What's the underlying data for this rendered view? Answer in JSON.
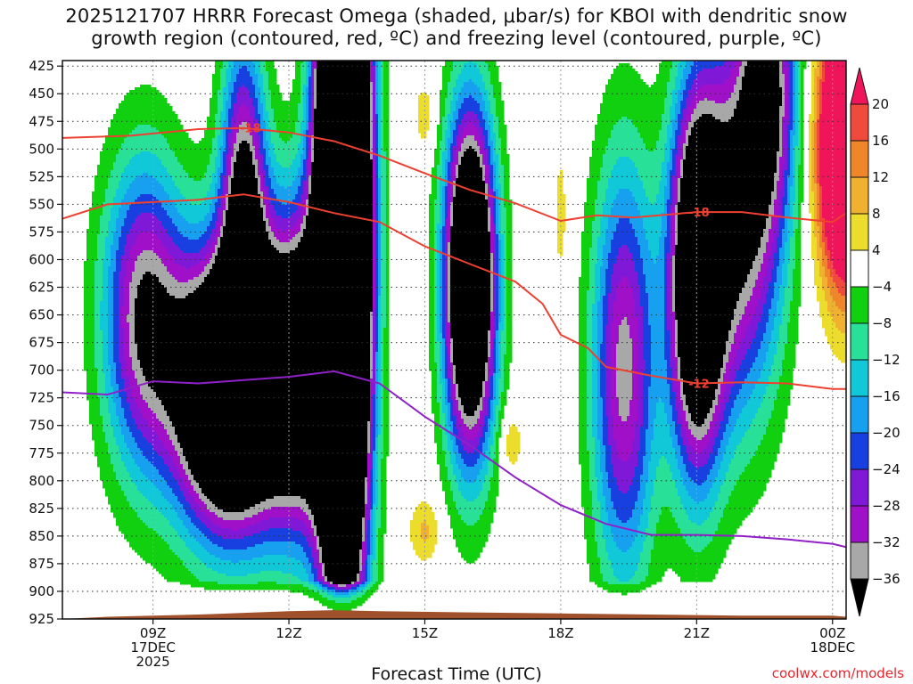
{
  "chart_data": {
    "type": "heatmap",
    "title_line1": "2025121707 HRRR Forecast Omega (shaded, μbar/s) for KBOI with dendritic snow",
    "title_line2": "growth region (contoured, red, ºC) and freezing level (contoured, purple, ºC)",
    "xlabel": "Forecast Time (UTC)",
    "credit": "coolwx.com/models",
    "y_ticks": [
      425,
      450,
      475,
      500,
      525,
      550,
      575,
      600,
      625,
      650,
      675,
      700,
      725,
      750,
      775,
      800,
      825,
      850,
      875,
      900,
      925
    ],
    "ylim": [
      925,
      420
    ],
    "xlim": [
      7,
      24.3
    ],
    "x_ticks": [
      {
        "x": 9,
        "lines": [
          "09Z",
          "17DEC",
          "2025"
        ]
      },
      {
        "x": 12,
        "lines": [
          "12Z"
        ]
      },
      {
        "x": 15,
        "lines": [
          "15Z"
        ]
      },
      {
        "x": 18,
        "lines": [
          "18Z"
        ]
      },
      {
        "x": 21,
        "lines": [
          "21Z"
        ]
      },
      {
        "x": 24,
        "lines": [
          "00Z",
          "18DEC"
        ]
      }
    ],
    "colorbar": {
      "labels": [
        20,
        16,
        12,
        8,
        4,
        -4,
        -8,
        -12,
        -16,
        -20,
        -24,
        -28,
        -32,
        -36
      ],
      "colors": [
        "#f0145a",
        "#f04a3c",
        "#f0862a",
        "#f0b030",
        "#ecdc2c",
        "#ffffff",
        "#10d010",
        "#28e098",
        "#10c8d8",
        "#18a0f0",
        "#1840e0",
        "#8018d8",
        "#a010c8",
        "#a8a8a8",
        "#000000"
      ]
    },
    "contours": [
      {
        "label": "-18",
        "color": "#ee4030",
        "points": [
          [
            7,
            490
          ],
          [
            8.5,
            488
          ],
          [
            10,
            482
          ],
          [
            11,
            481
          ],
          [
            12,
            485
          ],
          [
            13,
            493
          ],
          [
            14,
            506
          ],
          [
            15,
            522
          ],
          [
            16,
            537
          ],
          [
            17,
            549
          ],
          [
            18,
            565
          ],
          [
            18.8,
            560
          ],
          [
            19.6,
            562
          ],
          [
            21,
            557
          ],
          [
            22,
            557
          ],
          [
            23,
            562
          ],
          [
            24,
            566
          ],
          [
            24.3,
            558
          ]
        ],
        "label_at": [
          [
            10.9,
            481
          ],
          [
            20.8,
            557
          ]
        ]
      },
      {
        "label": "-12",
        "color": "#ee4030",
        "points": [
          [
            7,
            563
          ],
          [
            8,
            550
          ],
          [
            9,
            548
          ],
          [
            10,
            546
          ],
          [
            11,
            541
          ],
          [
            12,
            548
          ],
          [
            13,
            558
          ],
          [
            14,
            566
          ],
          [
            15,
            588
          ],
          [
            16,
            604
          ],
          [
            17,
            620
          ],
          [
            17.6,
            640
          ],
          [
            18,
            668
          ],
          [
            18.6,
            680
          ],
          [
            19,
            697
          ],
          [
            20,
            705
          ],
          [
            21,
            712
          ],
          [
            22,
            711
          ],
          [
            23,
            712
          ],
          [
            24,
            717
          ],
          [
            24.3,
            717
          ]
        ],
        "label_at": [
          [
            20.8,
            712
          ]
        ]
      },
      {
        "label": "",
        "color": "#9020c8",
        "points": [
          [
            7,
            720
          ],
          [
            8,
            722
          ],
          [
            9,
            710
          ],
          [
            10,
            712
          ],
          [
            11,
            709
          ],
          [
            12,
            706
          ],
          [
            13,
            701
          ],
          [
            14,
            712
          ],
          [
            15,
            742
          ],
          [
            16,
            768
          ],
          [
            17,
            797
          ],
          [
            18,
            822
          ],
          [
            19,
            839
          ],
          [
            20,
            849
          ],
          [
            21,
            849
          ],
          [
            22,
            850
          ],
          [
            23,
            853
          ],
          [
            24,
            857
          ],
          [
            24.3,
            860
          ]
        ],
        "label_at": []
      }
    ],
    "terrain_color": "#a0502a"
  }
}
